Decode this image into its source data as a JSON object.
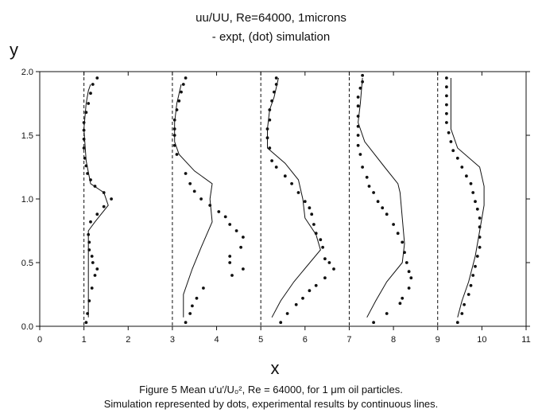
{
  "title": "uu/UU, Re=64000, 1microns",
  "subtitle": "- expt, (dot) simulation",
  "caption_line1": "Figure 5  Mean u′u′/U₀², Re = 64000, for 1 μm oil particles.",
  "caption_line2": "Simulation represented by dots, experimental results by continuous lines.",
  "chart_data": {
    "type": "line",
    "xlabel": "x",
    "ylabel": "y",
    "xlim": [
      0,
      11
    ],
    "ylim": [
      0,
      2.0
    ],
    "x_ticks": [
      0,
      1,
      2,
      3,
      4,
      5,
      6,
      7,
      8,
      9,
      10,
      11
    ],
    "y_ticks": [
      0.0,
      0.5,
      1.0,
      1.5,
      2.0
    ],
    "y_tick_labels": [
      "0.0",
      "0.5",
      "1.0",
      "1.5",
      "2.0"
    ],
    "reference_lines_x": [
      1,
      3,
      5,
      7,
      9
    ],
    "grid": false,
    "series": [
      {
        "style": "line",
        "profile": 1,
        "points": [
          [
            1.1,
            0.07
          ],
          [
            1.1,
            0.3
          ],
          [
            1.1,
            0.55
          ],
          [
            1.1,
            0.75
          ],
          [
            1.25,
            0.82
          ],
          [
            1.55,
            0.95
          ],
          [
            1.45,
            1.05
          ],
          [
            1.15,
            1.12
          ],
          [
            1.05,
            1.3
          ],
          [
            1.0,
            1.55
          ],
          [
            1.05,
            1.75
          ],
          [
            1.1,
            1.85
          ],
          [
            1.15,
            1.9
          ]
        ]
      },
      {
        "style": "dots",
        "profile": 1,
        "points": [
          [
            1.05,
            0.03
          ],
          [
            1.08,
            0.1
          ],
          [
            1.12,
            0.2
          ],
          [
            1.18,
            0.3
          ],
          [
            1.25,
            0.4
          ],
          [
            1.3,
            0.45
          ],
          [
            1.2,
            0.5
          ],
          [
            1.18,
            0.55
          ],
          [
            1.12,
            0.6
          ],
          [
            1.12,
            0.66
          ],
          [
            1.1,
            0.72
          ],
          [
            1.15,
            0.82
          ],
          [
            1.3,
            0.88
          ],
          [
            1.45,
            0.94
          ],
          [
            1.62,
            1.0
          ],
          [
            1.45,
            1.05
          ],
          [
            1.25,
            1.1
          ],
          [
            1.15,
            1.15
          ],
          [
            1.08,
            1.2
          ],
          [
            1.05,
            1.26
          ],
          [
            1.02,
            1.32
          ],
          [
            1.0,
            1.4
          ],
          [
            1.0,
            1.47
          ],
          [
            1.0,
            1.54
          ],
          [
            1.0,
            1.6
          ],
          [
            1.05,
            1.68
          ],
          [
            1.1,
            1.75
          ],
          [
            1.15,
            1.83
          ],
          [
            1.2,
            1.9
          ],
          [
            1.3,
            1.95
          ]
        ]
      },
      {
        "style": "line",
        "profile": 2,
        "points": [
          [
            3.25,
            0.07
          ],
          [
            3.25,
            0.25
          ],
          [
            3.45,
            0.45
          ],
          [
            3.65,
            0.62
          ],
          [
            3.9,
            0.82
          ],
          [
            3.85,
            1.0
          ],
          [
            3.9,
            1.12
          ],
          [
            3.5,
            1.22
          ],
          [
            3.15,
            1.35
          ],
          [
            3.05,
            1.45
          ],
          [
            3.05,
            1.6
          ],
          [
            3.1,
            1.75
          ],
          [
            3.2,
            1.9
          ]
        ]
      },
      {
        "style": "dots",
        "profile": 2,
        "points": [
          [
            3.3,
            0.03
          ],
          [
            3.4,
            0.1
          ],
          [
            3.45,
            0.16
          ],
          [
            3.55,
            0.22
          ],
          [
            3.7,
            0.3
          ],
          [
            4.35,
            0.4
          ],
          [
            4.6,
            0.45
          ],
          [
            4.3,
            0.5
          ],
          [
            4.3,
            0.55
          ],
          [
            4.55,
            0.62
          ],
          [
            4.6,
            0.7
          ],
          [
            4.45,
            0.75
          ],
          [
            4.3,
            0.8
          ],
          [
            4.2,
            0.86
          ],
          [
            4.05,
            0.9
          ],
          [
            3.85,
            0.95
          ],
          [
            3.65,
            1.0
          ],
          [
            3.5,
            1.06
          ],
          [
            3.4,
            1.12
          ],
          [
            3.3,
            1.2
          ],
          [
            3.1,
            1.35
          ],
          [
            3.05,
            1.42
          ],
          [
            3.05,
            1.5
          ],
          [
            3.05,
            1.55
          ],
          [
            3.05,
            1.62
          ],
          [
            3.1,
            1.7
          ],
          [
            3.15,
            1.77
          ],
          [
            3.2,
            1.84
          ],
          [
            3.25,
            1.9
          ],
          [
            3.3,
            1.95
          ]
        ]
      },
      {
        "style": "line",
        "profile": 3,
        "points": [
          [
            5.25,
            0.07
          ],
          [
            5.45,
            0.2
          ],
          [
            5.75,
            0.35
          ],
          [
            6.35,
            0.6
          ],
          [
            6.25,
            0.72
          ],
          [
            6.0,
            0.85
          ],
          [
            5.95,
            1.0
          ],
          [
            5.85,
            1.15
          ],
          [
            5.55,
            1.28
          ],
          [
            5.15,
            1.4
          ],
          [
            5.15,
            1.55
          ],
          [
            5.2,
            1.7
          ],
          [
            5.3,
            1.8
          ],
          [
            5.4,
            1.95
          ]
        ]
      },
      {
        "style": "dots",
        "profile": 3,
        "points": [
          [
            5.45,
            0.03
          ],
          [
            5.6,
            0.1
          ],
          [
            5.8,
            0.17
          ],
          [
            5.95,
            0.22
          ],
          [
            6.1,
            0.28
          ],
          [
            6.25,
            0.32
          ],
          [
            6.45,
            0.38
          ],
          [
            6.65,
            0.45
          ],
          [
            6.55,
            0.5
          ],
          [
            6.45,
            0.53
          ],
          [
            6.4,
            0.62
          ],
          [
            6.35,
            0.68
          ],
          [
            6.25,
            0.73
          ],
          [
            6.2,
            0.8
          ],
          [
            6.15,
            0.88
          ],
          [
            6.1,
            0.93
          ],
          [
            6.0,
            0.98
          ],
          [
            5.85,
            1.05
          ],
          [
            5.7,
            1.12
          ],
          [
            5.55,
            1.18
          ],
          [
            5.35,
            1.25
          ],
          [
            5.25,
            1.3
          ],
          [
            5.2,
            1.4
          ],
          [
            5.15,
            1.48
          ],
          [
            5.15,
            1.55
          ],
          [
            5.2,
            1.62
          ],
          [
            5.2,
            1.7
          ],
          [
            5.25,
            1.77
          ],
          [
            5.3,
            1.84
          ],
          [
            5.35,
            1.9
          ],
          [
            5.35,
            1.95
          ]
        ]
      },
      {
        "style": "line",
        "profile": 4,
        "points": [
          [
            7.4,
            0.07
          ],
          [
            7.6,
            0.2
          ],
          [
            7.85,
            0.35
          ],
          [
            8.2,
            0.5
          ],
          [
            8.25,
            0.65
          ],
          [
            8.2,
            0.85
          ],
          [
            8.15,
            1.05
          ],
          [
            8.1,
            1.12
          ],
          [
            7.8,
            1.25
          ],
          [
            7.35,
            1.45
          ],
          [
            7.2,
            1.6
          ],
          [
            7.25,
            1.75
          ],
          [
            7.3,
            1.95
          ]
        ]
      },
      {
        "style": "dots",
        "profile": 4,
        "points": [
          [
            7.55,
            0.03
          ],
          [
            7.85,
            0.1
          ],
          [
            8.15,
            0.18
          ],
          [
            8.2,
            0.22
          ],
          [
            8.35,
            0.3
          ],
          [
            8.4,
            0.38
          ],
          [
            8.35,
            0.43
          ],
          [
            8.3,
            0.5
          ],
          [
            8.25,
            0.58
          ],
          [
            8.2,
            0.66
          ],
          [
            8.1,
            0.73
          ],
          [
            8.0,
            0.8
          ],
          [
            7.85,
            0.88
          ],
          [
            7.75,
            0.93
          ],
          [
            7.65,
            0.98
          ],
          [
            7.55,
            1.05
          ],
          [
            7.45,
            1.1
          ],
          [
            7.4,
            1.17
          ],
          [
            7.3,
            1.25
          ],
          [
            7.25,
            1.35
          ],
          [
            7.2,
            1.42
          ],
          [
            7.2,
            1.5
          ],
          [
            7.2,
            1.57
          ],
          [
            7.2,
            1.65
          ],
          [
            7.2,
            1.73
          ],
          [
            7.2,
            1.8
          ],
          [
            7.25,
            1.87
          ],
          [
            7.3,
            1.92
          ],
          [
            7.3,
            1.97
          ]
        ]
      },
      {
        "style": "line",
        "profile": 5,
        "points": [
          [
            9.45,
            0.07
          ],
          [
            9.55,
            0.2
          ],
          [
            9.7,
            0.35
          ],
          [
            9.85,
            0.55
          ],
          [
            9.95,
            0.75
          ],
          [
            10.05,
            0.95
          ],
          [
            10.05,
            1.1
          ],
          [
            9.95,
            1.25
          ],
          [
            9.45,
            1.4
          ],
          [
            9.3,
            1.55
          ],
          [
            9.3,
            1.75
          ],
          [
            9.3,
            1.95
          ]
        ]
      },
      {
        "style": "dots",
        "profile": 5,
        "points": [
          [
            9.45,
            0.03
          ],
          [
            9.55,
            0.1
          ],
          [
            9.6,
            0.17
          ],
          [
            9.7,
            0.25
          ],
          [
            9.75,
            0.32
          ],
          [
            9.8,
            0.4
          ],
          [
            9.85,
            0.47
          ],
          [
            9.9,
            0.55
          ],
          [
            9.95,
            0.62
          ],
          [
            9.95,
            0.7
          ],
          [
            9.95,
            0.78
          ],
          [
            9.95,
            0.85
          ],
          [
            9.9,
            0.92
          ],
          [
            9.85,
            0.98
          ],
          [
            9.8,
            1.05
          ],
          [
            9.75,
            1.12
          ],
          [
            9.65,
            1.18
          ],
          [
            9.55,
            1.25
          ],
          [
            9.45,
            1.32
          ],
          [
            9.35,
            1.38
          ],
          [
            9.3,
            1.45
          ],
          [
            9.25,
            1.52
          ],
          [
            9.2,
            1.6
          ],
          [
            9.2,
            1.67
          ],
          [
            9.2,
            1.74
          ],
          [
            9.2,
            1.81
          ],
          [
            9.2,
            1.88
          ],
          [
            9.2,
            1.95
          ]
        ]
      }
    ]
  }
}
